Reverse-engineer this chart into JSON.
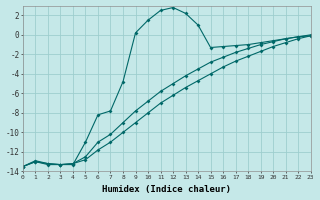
{
  "title": "",
  "xlabel": "Humidex (Indice chaleur)",
  "ylabel": "",
  "bg_color": "#c5e8e8",
  "grid_color": "#9ecece",
  "line_color": "#006868",
  "xlim": [
    0,
    23
  ],
  "ylim": [
    -14,
    3
  ],
  "yticks": [
    2,
    0,
    -2,
    -4,
    -6,
    -8,
    -10,
    -12,
    -14
  ],
  "xticks": [
    0,
    1,
    2,
    3,
    4,
    5,
    6,
    7,
    8,
    9,
    10,
    11,
    12,
    13,
    14,
    15,
    16,
    17,
    18,
    19,
    20,
    21,
    22,
    23
  ],
  "curve1_x": [
    0,
    1,
    2,
    3,
    4,
    5,
    6,
    7,
    8,
    9,
    10,
    11,
    12,
    13,
    14,
    15,
    16,
    17,
    18,
    19,
    20,
    21,
    22,
    23
  ],
  "curve1_y": [
    -13.5,
    -13.0,
    -13.2,
    -13.3,
    -13.3,
    -11.0,
    -8.2,
    -7.8,
    -4.8,
    0.2,
    1.5,
    2.5,
    2.8,
    2.2,
    1.0,
    -1.3,
    -1.2,
    -1.1,
    -1.0,
    -0.8,
    -0.6,
    -0.4,
    -0.2,
    -0.1
  ],
  "curve2_x": [
    0,
    1,
    2,
    3,
    4,
    5,
    6,
    7,
    8,
    9,
    10,
    11,
    12,
    13,
    14,
    15,
    16,
    17,
    18,
    19,
    20,
    21,
    22,
    23
  ],
  "curve2_y": [
    -13.5,
    -12.9,
    -13.2,
    -13.3,
    -13.2,
    -12.5,
    -11.0,
    -10.2,
    -9.0,
    -7.8,
    -6.8,
    -5.8,
    -5.0,
    -4.2,
    -3.5,
    -2.8,
    -2.3,
    -1.8,
    -1.4,
    -1.0,
    -0.7,
    -0.4,
    -0.2,
    -0.0
  ],
  "curve3_x": [
    0,
    1,
    2,
    3,
    4,
    5,
    6,
    7,
    8,
    9,
    10,
    11,
    12,
    13,
    14,
    15,
    16,
    17,
    18,
    19,
    20,
    21,
    22,
    23
  ],
  "curve3_y": [
    -13.5,
    -13.0,
    -13.3,
    -13.3,
    -13.2,
    -12.8,
    -11.8,
    -11.0,
    -10.0,
    -9.0,
    -8.0,
    -7.0,
    -6.2,
    -5.4,
    -4.7,
    -4.0,
    -3.3,
    -2.7,
    -2.2,
    -1.7,
    -1.2,
    -0.8,
    -0.4,
    -0.1
  ]
}
